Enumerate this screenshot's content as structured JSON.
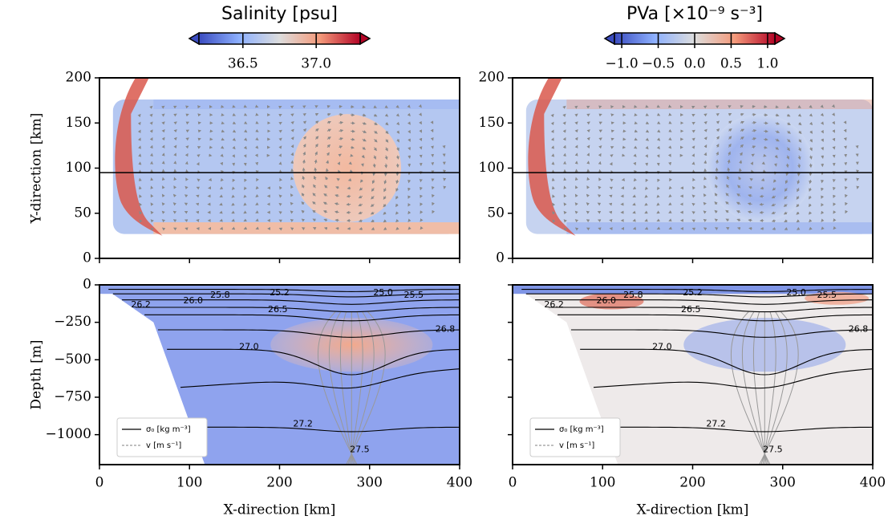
{
  "chart_data": [
    {
      "type": "heatmap",
      "ylabel": "Y-direction [km]",
      "xlim": [
        0,
        400
      ],
      "ylim": [
        0,
        200
      ],
      "xticks": [
        0,
        100,
        200,
        300,
        400
      ],
      "yticks": [
        0,
        50,
        100,
        150,
        200
      ],
      "section_y": 95,
      "colorbar": {
        "label": "Salinity [psu]",
        "lim": [
          36.2,
          37.3
        ],
        "ticks": [
          36.5,
          {
            "value": 37,
            "label": "37.0"
          }
        ]
      }
    },
    {
      "type": "heatmap",
      "xlim": [
        0,
        400
      ],
      "ylim": [
        0,
        200
      ],
      "xticks": [
        0,
        100,
        200,
        300,
        400
      ],
      "yticks": [
        0,
        50,
        100,
        150,
        200
      ],
      "section_y": 95,
      "colorbar": {
        "label": "PVa [×10⁻⁹ s⁻³]",
        "lim": [
          -1.1,
          1.1
        ],
        "ticks": [
          {
            "value": -1,
            "label": "−1.0"
          },
          {
            "value": -0.5,
            "label": "−0.5"
          },
          {
            "value": 0,
            "label": "0.0"
          },
          0.5,
          {
            "value": 1,
            "label": "1.0"
          }
        ]
      }
    },
    {
      "type": "section",
      "ylabel": "Depth [m]",
      "xlabel": "X-direction [km]",
      "xlim": [
        0,
        400
      ],
      "ylim": [
        -1200,
        0
      ],
      "xticks": [
        0,
        100,
        200,
        300,
        400
      ],
      "yticks": [
        0,
        {
          "value": -250,
          "label": "−250"
        },
        {
          "value": -500,
          "label": "−500"
        },
        {
          "value": -750,
          "label": "−750"
        },
        {
          "value": -1000,
          "label": "−1000"
        }
      ],
      "contour_labels": [
        "25.2",
        "25.0",
        "25.5",
        "25.8",
        "26.0",
        "26.2",
        "26.5",
        "26.8",
        "27.0",
        "27.2",
        "27.5"
      ],
      "legend": [
        {
          "label": "σ₀ [kg m⁻³]",
          "color": "#000000"
        },
        {
          "label": "v [m s⁻¹]",
          "color": "#808080"
        }
      ]
    },
    {
      "type": "section",
      "xlabel": "X-direction [km]",
      "xlim": [
        0,
        400
      ],
      "ylim": [
        -1200,
        0
      ],
      "xticks": [
        0,
        100,
        200,
        300,
        400
      ],
      "contour_labels": [
        "25.2",
        "25.0",
        "25.5",
        "25.8",
        "26.0",
        "26.2",
        "26.5",
        "26.8",
        "27.0",
        "27.2",
        "27.5"
      ],
      "legend": [
        {
          "label": "σ₀ [kg m⁻³]",
          "color": "#000000"
        },
        {
          "label": "v [m s⁻¹]",
          "color": "#808080"
        }
      ]
    }
  ]
}
